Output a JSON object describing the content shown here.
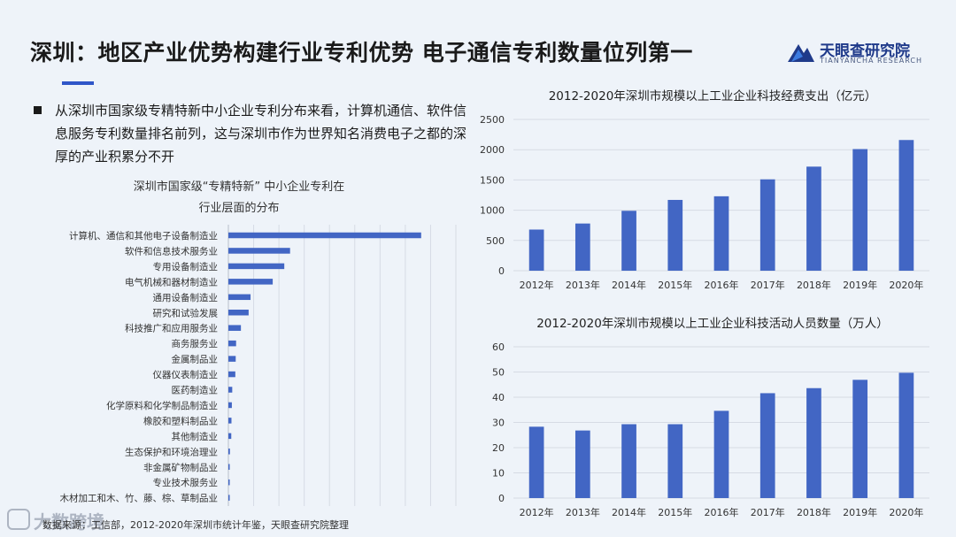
{
  "header": {
    "title": "深圳：地区产业优势构建行业专利优势 电子通信专利数量位列第一",
    "logo_name": "天眼查研究院",
    "logo_sub": "TIANYANCHA RESEARCH",
    "logo_icon": "tianyancha-logo-icon"
  },
  "bullet": {
    "text": "从深圳市国家级专精特新中小企业专利分布来看，计算机通信、软件信息服务专利数量排名前列，这与深圳市作为世界知名消费电子之都的深厚的产业积累分不开"
  },
  "source": "数据来源：工信部，2012-2020年深圳市统计年鉴，天眼查研究院整理",
  "watermark": {
    "text": "大数跨境",
    "icon": "dashu-logo-icon"
  },
  "colors": {
    "bar": "#4266c4",
    "grid": "#d6dbe4",
    "axis": "#b8bfcc",
    "accent": "#2f56c8"
  },
  "chart_data": [
    {
      "type": "bar",
      "orientation": "horizontal",
      "title": "深圳市国家级“专精特新” 中小企业专利在行业层面的分布",
      "title_lines": [
        "深圳市国家级“专精特新” 中小企业专利在",
        "行业层面的分布"
      ],
      "categories": [
        "计算机、通信和其他电子设备制造业",
        "软件和信息技术服务业",
        "专用设备制造业",
        "电气机械和器材制造业",
        "通用设备制造业",
        "研究和试验发展",
        "科技推广和应用服务业",
        "商务服务业",
        "金属制品业",
        "仪器仪表制造业",
        "医药制造业",
        "化学原料和化学制品制造业",
        "橡胶和塑料制品业",
        "其他制造业",
        "生态保护和环境治理业",
        "非金属矿物制品业",
        "专业技术服务业",
        "木材加工和木、竹、藤、棕、草制品业"
      ],
      "values": [
        1000,
        320,
        290,
        230,
        115,
        105,
        65,
        40,
        38,
        36,
        20,
        18,
        16,
        15,
        8,
        6,
        4,
        3
      ],
      "xlim": [
        0,
        1180
      ],
      "grid": true,
      "legend": "none"
    },
    {
      "type": "bar",
      "title": "2012-2020年深圳市规模以上工业企业科技经费支出（亿元）",
      "categories": [
        "2012年",
        "2013年",
        "2014年",
        "2015年",
        "2016年",
        "2017年",
        "2018年",
        "2019年",
        "2020年"
      ],
      "values": [
        680,
        780,
        990,
        1170,
        1230,
        1510,
        1720,
        2010,
        2160
      ],
      "ylim": [
        0,
        2500
      ],
      "yticks": [
        0,
        500,
        1000,
        1500,
        2000,
        2500
      ],
      "grid": true,
      "legend": "none"
    },
    {
      "type": "bar",
      "title": "2012-2020年深圳市规模以上工业企业科技活动人员数量（万人）",
      "categories": [
        "2012年",
        "2013年",
        "2014年",
        "2015年",
        "2016年",
        "2017年",
        "2018年",
        "2019年",
        "2020年"
      ],
      "values": [
        28.3,
        26.8,
        29.3,
        29.3,
        34.6,
        41.6,
        43.6,
        46.9,
        49.7
      ],
      "ylim": [
        0,
        60
      ],
      "yticks": [
        0,
        10,
        20,
        30,
        40,
        50,
        60
      ],
      "grid": true,
      "legend": "none"
    }
  ]
}
